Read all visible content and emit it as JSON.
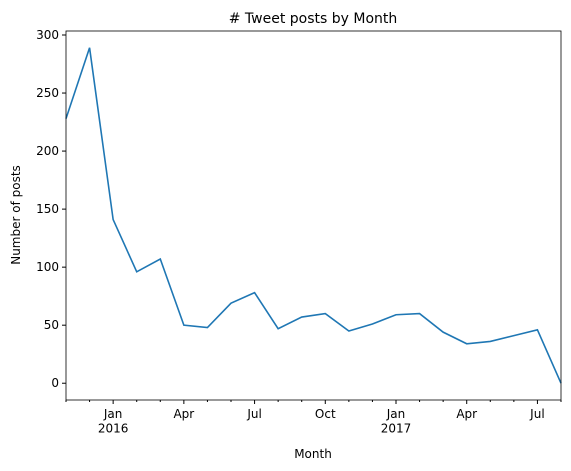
{
  "chart_data": {
    "type": "line",
    "title": "# Tweet posts by Month",
    "xlabel": "Month",
    "ylabel": "Number of posts",
    "categories": [
      null,
      null,
      "Jan\n2016",
      null,
      null,
      "Apr",
      null,
      null,
      "Jul",
      null,
      null,
      "Oct",
      null,
      null,
      "Jan\n2017",
      null,
      null,
      "Apr",
      null,
      null,
      "Jul",
      null
    ],
    "series": [
      {
        "name": "posts",
        "color": "#1f77b4",
        "values": [
          228,
          289,
          141,
          96,
          107,
          50,
          48,
          69,
          78,
          47,
          57,
          60,
          45,
          51,
          59,
          60,
          44,
          34,
          36,
          41,
          46,
          0
        ]
      }
    ],
    "ylim": [
      -14.45,
      303.45
    ],
    "yticks": [
      0,
      50,
      100,
      150,
      200,
      250,
      300
    ]
  }
}
